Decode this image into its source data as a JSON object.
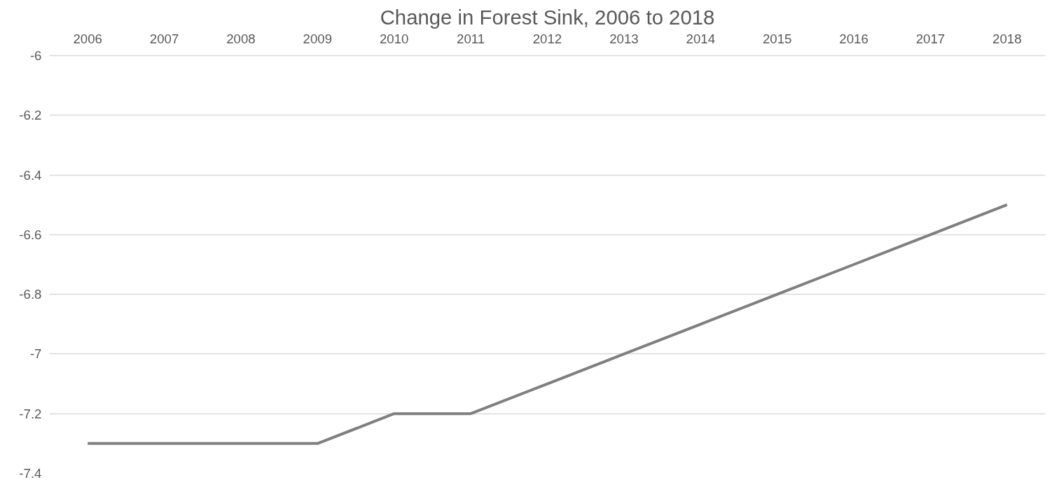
{
  "chart_data": {
    "type": "line",
    "title": "Change in Forest Sink, 2006 to 2018",
    "categories": [
      "2006",
      "2007",
      "2008",
      "2009",
      "2010",
      "2011",
      "2012",
      "2013",
      "2014",
      "2015",
      "2016",
      "2017",
      "2018"
    ],
    "series": [
      {
        "color": "#7f7f7f",
        "values": [
          -7.3,
          -7.3,
          -7.3,
          -7.3,
          -7.2,
          -7.2,
          -7.1,
          -7.0,
          -6.9,
          -6.8,
          -6.7,
          -6.6,
          -6.5
        ]
      }
    ],
    "ylim": [
      -7.4,
      -6
    ],
    "yticks": [
      -7.4,
      -7.2,
      -7,
      -6.8,
      -6.6,
      -6.4,
      -6.2,
      -6
    ],
    "grid": "y",
    "marker": "none",
    "line_style": "solid"
  }
}
